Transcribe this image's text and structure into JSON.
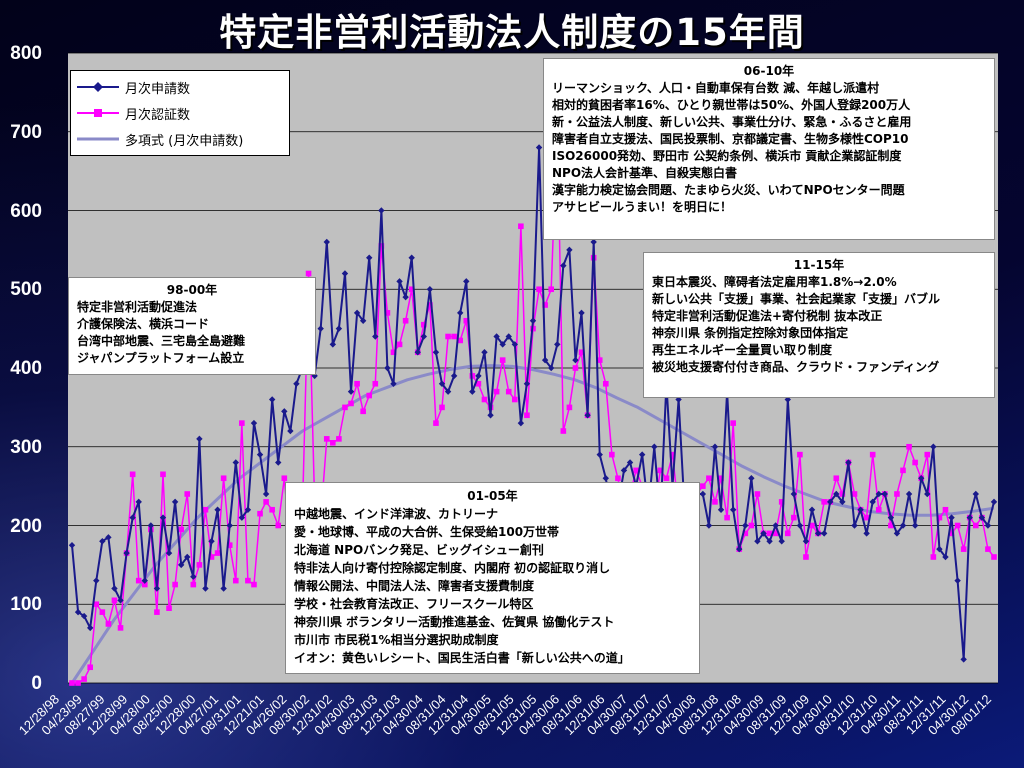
{
  "title": "特定非営利活動法人制度の15年間",
  "colors": {
    "applications": "#1a1a8c",
    "certifications": "#ff00ff",
    "trend": "#8a8ac8",
    "plot_bg": "#c0c0c0"
  },
  "legend": {
    "applications": "月次申請数",
    "certifications": "月次認証数",
    "trend": "多項式 (月次申請数)"
  },
  "annotations": {
    "b9800": {
      "header": "98-00年",
      "lines": [
        "特定非営利活動促進法",
        "介護保険法、横浜コード",
        "台湾中部地震、三宅島全島避難",
        "ジャパンプラットフォーム設立"
      ]
    },
    "b0105": {
      "header": "01-05年",
      "lines": [
        "中越地震、インド洋津波、カトリーナ",
        "愛・地球博、平成の大合併、生保受給100万世帯",
        "北海道 NPOバンク発足、ビッグイシュー創刊",
        "特非法人向け寄付控除認定制度、内閣府 初の認証取り消し",
        "情報公開法、中間法人法、障害者支援費制度",
        "学校・社会教育法改正、フリースクール特区",
        "神奈川県 ボランタリー活動推進基金、佐賀県 協働化テスト",
        "市川市 市民税1%相当分選択助成制度",
        "イオン：黄色いレシート、国民生活白書「新しい公共への道」"
      ]
    },
    "b0610": {
      "header": "06-10年",
      "lines": [
        "リーマンショック、人口・自動車保有台数 減、年越し派遣村",
        "相対的貧困者率16%、ひとり親世帯は50%、外国人登録200万人",
        "新・公益法人制度、新しい公共、事業仕分け、緊急・ふるさと雇用",
        "障害者自立支援法、国民投票制、京都議定書、生物多様性COP10",
        "ISO26000発効、野田市 公契約条例、横浜市 貢献企業認証制度",
        "NPO法人会計基準、自殺実態白書",
        "漢字能力検定協会問題、たまゆら火災、いわてNPOセンター問題",
        "アサヒビールうまい！を明日に！"
      ]
    },
    "b1115": {
      "header": "11-15年",
      "lines": [
        "東日本震災、障碍者法定雇用率1.8%→2.0%",
        "新しい公共「支援」事業、社会起業家「支援」バブル",
        "特定非営利活動促進法+寄付税制 抜本改正",
        "神奈川県 条例指定控除対象団体指定",
        "再生エネルギー全量買い取り制度",
        "被災地支援寄付付き商品、クラウド・ファンディング"
      ]
    }
  },
  "chart_data": {
    "type": "line",
    "ylim": [
      0,
      800
    ],
    "yticks": [
      "0",
      "100",
      "200",
      "300",
      "400",
      "500",
      "600",
      "700",
      "800"
    ],
    "x_tick_labels": [
      "12/28/98",
      "04/23/99",
      "08/27/99",
      "12/28/99",
      "04/28/00",
      "08/25/00",
      "12/28/00",
      "04/27/01",
      "08/31/01",
      "12/21/01",
      "04/26/02",
      "08/30/02",
      "12/31/02",
      "04/30/03",
      "08/31/03",
      "12/31/03",
      "04/30/04",
      "08/31/04",
      "12/31/04",
      "04/30/05",
      "08/31/05",
      "12/31/05",
      "04/30/06",
      "08/31/06",
      "12/31/06",
      "04/30/07",
      "08/31/07",
      "12/31/07",
      "04/30/08",
      "08/31/08",
      "12/31/08",
      "04/30/09",
      "08/31/09",
      "12/31/09",
      "04/30/10",
      "08/31/10",
      "12/31/10",
      "04/30/11",
      "08/31/11",
      "12/31/11",
      "04/30/12",
      "08/01/12"
    ],
    "series": [
      {
        "name": "月次申請数",
        "marker": "diamond",
        "values": [
          175,
          90,
          85,
          70,
          130,
          180,
          185,
          120,
          105,
          165,
          210,
          230,
          130,
          200,
          120,
          210,
          165,
          230,
          150,
          160,
          135,
          310,
          120,
          180,
          220,
          120,
          200,
          280,
          210,
          220,
          330,
          290,
          240,
          360,
          280,
          345,
          320,
          380,
          400,
          410,
          390,
          450,
          560,
          430,
          450,
          520,
          370,
          470,
          460,
          540,
          440,
          600,
          400,
          380,
          510,
          490,
          540,
          420,
          440,
          500,
          420,
          380,
          370,
          390,
          470,
          510,
          370,
          390,
          420,
          340,
          440,
          430,
          440,
          430,
          330,
          380,
          460,
          680,
          410,
          400,
          430,
          530,
          550,
          410,
          470,
          340,
          560,
          290,
          260,
          215,
          225,
          270,
          280,
          250,
          290,
          220,
          300,
          210,
          380,
          250,
          360,
          220,
          200,
          240,
          240,
          200,
          300,
          220,
          370,
          220,
          170,
          200,
          260,
          180,
          190,
          180,
          200,
          180,
          360,
          240,
          200,
          180,
          220,
          190,
          190,
          230,
          240,
          230,
          280,
          200,
          220,
          190,
          230,
          240,
          240,
          210,
          190,
          200,
          240,
          200,
          260,
          240,
          300,
          170,
          160,
          210,
          130,
          30,
          210,
          240,
          210,
          200,
          230
        ],
        "stroke_width": 2
      },
      {
        "name": "月次認証数",
        "marker": "square",
        "values": [
          0,
          0,
          5,
          20,
          100,
          90,
          75,
          105,
          70,
          165,
          265,
          130,
          125,
          195,
          90,
          265,
          95,
          125,
          195,
          240,
          125,
          150,
          220,
          160,
          165,
          260,
          175,
          130,
          330,
          130,
          125,
          215,
          230,
          220,
          200,
          260,
          170,
          245,
          220,
          520,
          230,
          210,
          310,
          305,
          310,
          350,
          355,
          380,
          345,
          365,
          380,
          555,
          470,
          420,
          430,
          460,
          500,
          420,
          455,
          480,
          330,
          350,
          440,
          440,
          435,
          460,
          390,
          380,
          360,
          350,
          370,
          410,
          370,
          360,
          580,
          340,
          450,
          500,
          480,
          500,
          710,
          320,
          350,
          400,
          420,
          340,
          540,
          410,
          380,
          290,
          260,
          220,
          240,
          270,
          250,
          240,
          220,
          270,
          260,
          290,
          220,
          200,
          240,
          240,
          250,
          260,
          230,
          260,
          210,
          330,
          170,
          190,
          200,
          240,
          190,
          190,
          190,
          230,
          190,
          210,
          290,
          160,
          200,
          190,
          230,
          230,
          260,
          240,
          280,
          240,
          220,
          210,
          290,
          220,
          240,
          200,
          240,
          270,
          300,
          280,
          260,
          290,
          160,
          210,
          220,
          190,
          200,
          170,
          210,
          200,
          210,
          170,
          160
        ],
        "stroke_width": 1.5
      },
      {
        "name": "多項式 (月次申請数)",
        "marker": "none",
        "values": [
          0,
          40,
          80,
          115,
          150,
          180,
          210,
          235,
          260,
          280,
          300,
          320,
          335,
          350,
          365,
          375,
          385,
          392,
          398,
          402,
          403,
          402,
          398,
          392,
          385,
          375,
          362,
          350,
          335,
          320,
          305,
          290,
          275,
          262,
          250,
          240,
          230,
          224,
          218,
          215,
          213,
          213,
          215,
          218,
          222
        ],
        "stroke_width": 3
      }
    ]
  }
}
